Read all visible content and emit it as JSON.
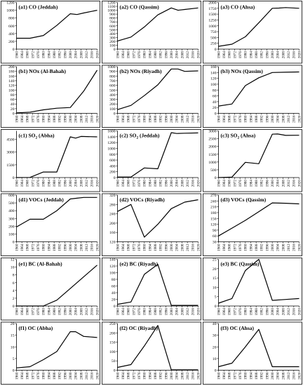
{
  "figure": {
    "x_ticks": [
      "1960",
      "1964",
      "1968",
      "1972",
      "1976",
      "1980",
      "1984",
      "1988",
      "1992",
      "1996",
      "2000",
      "2004",
      "2008",
      "2012",
      "2016",
      "2020"
    ]
  },
  "chart_data": [
    {
      "type": "line",
      "title": "(a1) CO  (Jeddah)",
      "ylim": [
        0,
        1200
      ],
      "yticks": [
        0,
        200,
        400,
        600,
        800,
        1000,
        1200
      ],
      "series": [
        {
          "x": [
            1960,
            1970,
            1980,
            1990,
            2000,
            2005,
            2010,
            2020
          ],
          "values": [
            280,
            280,
            350,
            610,
            910,
            890,
            930,
            1000
          ]
        }
      ]
    },
    {
      "type": "line",
      "title": "(a2) CO  (Qassim)",
      "ylim": [
        0,
        1200
      ],
      "yticks": [
        0,
        100,
        200,
        300,
        400,
        500,
        600,
        700,
        800,
        900,
        1000,
        1100,
        1200
      ],
      "series": [
        {
          "x": [
            1960,
            1970,
            1980,
            1990,
            2000,
            2005,
            2010,
            2020
          ],
          "values": [
            210,
            310,
            570,
            880,
            1060,
            1000,
            1020,
            1060
          ]
        }
      ]
    },
    {
      "type": "line",
      "title": "(a3) CO  (Ahsa)",
      "ylim": [
        0,
        2000
      ],
      "yticks": [
        0,
        250,
        500,
        750,
        1000,
        1250,
        1500,
        1750,
        2000
      ],
      "series": [
        {
          "x": [
            1960,
            1970,
            1980,
            1990,
            2000,
            2005,
            2010,
            2020
          ],
          "values": [
            120,
            210,
            530,
            1130,
            1750,
            1760,
            1780,
            1750
          ]
        }
      ]
    },
    {
      "type": "line",
      "title": "(b1) NOx  (Al-Bahah)",
      "ylim": [
        0,
        200
      ],
      "yticks": [
        0,
        20,
        40,
        60,
        80,
        100,
        120,
        140,
        160,
        180,
        200
      ],
      "series": [
        {
          "x": [
            1960,
            1970,
            1980,
            1990,
            2000,
            2010,
            2020
          ],
          "values": [
            2,
            5,
            15,
            22,
            25,
            95,
            185
          ]
        }
      ]
    },
    {
      "type": "line",
      "title": "(b2) NOx  (Riyadh)",
      "ylim": [
        0,
        1000
      ],
      "yticks": [
        0,
        100,
        200,
        300,
        400,
        500,
        600,
        700,
        800,
        900,
        1000
      ],
      "series": [
        {
          "x": [
            1960,
            1970,
            1980,
            1990,
            2000,
            2005,
            2010,
            2020
          ],
          "values": [
            80,
            170,
            380,
            610,
            950,
            950,
            900,
            910
          ]
        }
      ]
    },
    {
      "type": "line",
      "title": "(b3) NOx  (Qassim)",
      "ylim": [
        0,
        160
      ],
      "yticks": [
        0,
        20,
        40,
        60,
        80,
        100,
        120,
        140,
        160
      ],
      "series": [
        {
          "x": [
            1960,
            1970,
            1980,
            1990,
            2000,
            2010,
            2020
          ],
          "values": [
            25,
            32,
            95,
            122,
            140,
            141,
            142
          ]
        }
      ]
    },
    {
      "type": "line",
      "title": "(c1) SO2  (Abha)",
      "ylim": [
        0,
        5500
      ],
      "yticks": [
        0,
        1500,
        3000,
        4500
      ],
      "series": [
        {
          "x": [
            1960,
            1970,
            1980,
            1990,
            2000,
            2004,
            2008,
            2020
          ],
          "values": [
            0,
            20,
            650,
            650,
            4800,
            4650,
            4850,
            4800
          ]
        }
      ]
    },
    {
      "type": "line",
      "title": "(c2) SO2  (Jeddah)",
      "ylim": [
        0,
        1600
      ],
      "yticks": [
        0,
        200,
        400,
        600,
        800,
        1000,
        1200,
        1400,
        1600
      ],
      "series": [
        {
          "x": [
            1960,
            1970,
            1980,
            1990,
            2000,
            2004,
            2010,
            2020
          ],
          "values": [
            20,
            20,
            330,
            300,
            1540,
            1510,
            1520,
            1530
          ]
        }
      ]
    },
    {
      "type": "line",
      "title": "(c3) SO2  (Ahsa)",
      "ylim": [
        0,
        3000
      ],
      "yticks": [
        0,
        500,
        1000,
        1500,
        2000,
        2500,
        3000
      ],
      "series": [
        {
          "x": [
            1960,
            1970,
            1980,
            1990,
            2000,
            2004,
            2010,
            2020
          ],
          "values": [
            0,
            30,
            980,
            890,
            2790,
            2800,
            2710,
            2720
          ]
        }
      ]
    },
    {
      "type": "line",
      "title": "(d1) VOCs  (Jeddah)",
      "ylim": [
        0,
        600
      ],
      "yticks": [
        0,
        100,
        200,
        300,
        400,
        500,
        600
      ],
      "series": [
        {
          "x": [
            1960,
            1970,
            1980,
            1990,
            2000,
            2005,
            2010,
            2020
          ],
          "values": [
            190,
            290,
            290,
            400,
            550,
            560,
            570,
            570
          ]
        }
      ]
    },
    {
      "type": "line",
      "title": "(d2) VOCs  (Riyadh)",
      "ylim": [
        120,
        320
      ],
      "yticks": [
        120,
        160,
        200,
        240,
        280,
        320
      ],
      "series": [
        {
          "x": [
            1960,
            1970,
            1980,
            1990,
            2000,
            2010,
            2020
          ],
          "values": [
            250,
            280,
            140,
            195,
            262,
            290,
            300
          ]
        }
      ]
    },
    {
      "type": "line",
      "title": "(d3) VOCs  (Qassim)",
      "ylim": [
        30,
        270
      ],
      "yticks": [
        30,
        60,
        90,
        120,
        150,
        180,
        210,
        240,
        270
      ],
      "series": [
        {
          "x": [
            1960,
            1970,
            1980,
            1990,
            2000,
            2010,
            2020
          ],
          "values": [
            60,
            100,
            140,
            185,
            230,
            228,
            225
          ]
        }
      ]
    },
    {
      "type": "line",
      "title": "(e1) BC  (Al-Bahah)",
      "ylim": [
        0,
        12
      ],
      "yticks": [
        0,
        2,
        4,
        6,
        8,
        10,
        12
      ],
      "series": [
        {
          "x": [
            1960,
            1970,
            1980,
            1990,
            2000,
            2010,
            2020
          ],
          "values": [
            0,
            0,
            0,
            1.5,
            4.5,
            7.5,
            10.5
          ]
        }
      ]
    },
    {
      "type": "line",
      "title": "(e2) BC  (Riyadh)",
      "ylim": [
        0,
        140
      ],
      "yticks": [
        0,
        20,
        40,
        60,
        80,
        100,
        120,
        140
      ],
      "series": [
        {
          "x": [
            1960,
            1970,
            1980,
            1990,
            2000,
            2010,
            2020
          ],
          "values": [
            5,
            12,
            95,
            125,
            2,
            2,
            2
          ]
        }
      ]
    },
    {
      "type": "line",
      "title": "(e3) BC  (Qassim)",
      "ylim": [
        0,
        25
      ],
      "yticks": [
        0,
        5,
        10,
        15,
        20,
        25
      ],
      "series": [
        {
          "x": [
            1960,
            1970,
            1980,
            1990,
            2000,
            2010,
            2020
          ],
          "values": [
            1.5,
            4,
            19,
            25,
            3,
            3.5,
            4
          ]
        }
      ]
    },
    {
      "type": "line",
      "title": "(f1) OC  (Abha)",
      "ylim": [
        0,
        20
      ],
      "yticks": [
        0,
        5,
        10,
        15,
        20
      ],
      "series": [
        {
          "x": [
            1960,
            1970,
            1980,
            1990,
            2000,
            2004,
            2010,
            2020
          ],
          "values": [
            1,
            1.5,
            4.5,
            8,
            16.5,
            16.5,
            14.5,
            14
          ]
        }
      ]
    },
    {
      "type": "line",
      "title": "(f2) OC  (Riyadh)",
      "ylim": [
        0,
        250
      ],
      "yticks": [
        0,
        50,
        100,
        150,
        200,
        250
      ],
      "series": [
        {
          "x": [
            1960,
            1970,
            1980,
            1990,
            2000,
            2010,
            2020
          ],
          "values": [
            15,
            30,
            130,
            240,
            2,
            2,
            2
          ]
        }
      ]
    },
    {
      "type": "line",
      "title": "(f3) OC  (Ahsa)",
      "ylim": [
        0,
        40
      ],
      "yticks": [
        0,
        10,
        20,
        30,
        40
      ],
      "series": [
        {
          "x": [
            1960,
            1970,
            1980,
            1990,
            2000,
            2010,
            2020
          ],
          "values": [
            3,
            6,
            20,
            35,
            3,
            3,
            3
          ]
        }
      ]
    }
  ]
}
